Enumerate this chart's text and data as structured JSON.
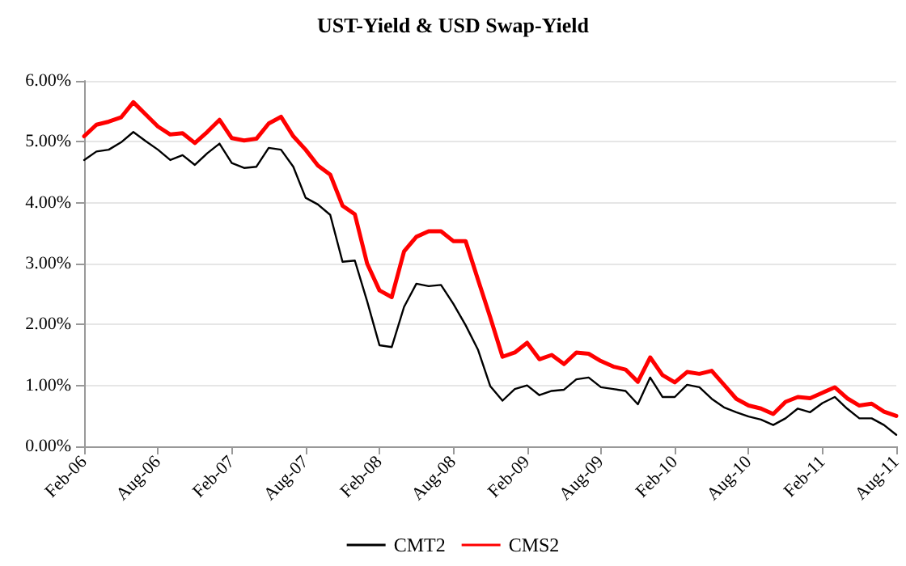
{
  "chart_data": {
    "type": "line",
    "title": "UST-Yield & USD Swap-Yield",
    "categories": [
      "Feb-06",
      null,
      null,
      null,
      null,
      null,
      "Aug-06",
      null,
      null,
      null,
      null,
      null,
      "Feb-07",
      null,
      null,
      null,
      null,
      null,
      "Aug-07",
      null,
      null,
      null,
      null,
      null,
      "Feb-08",
      null,
      null,
      null,
      null,
      null,
      "Aug-08",
      null,
      null,
      null,
      null,
      null,
      "Feb-09",
      null,
      null,
      null,
      null,
      null,
      "Aug-09",
      null,
      null,
      null,
      null,
      null,
      "Feb-10",
      null,
      null,
      null,
      null,
      null,
      "Aug-10",
      null,
      null,
      null,
      null,
      null,
      "Feb-11",
      null,
      null,
      null,
      null,
      null,
      "Aug-11"
    ],
    "series": [
      {
        "name": "CMT2",
        "color": "#000000",
        "values": [
          4.7,
          4.84,
          4.87,
          4.99,
          5.16,
          5.01,
          4.87,
          4.7,
          4.78,
          4.62,
          4.81,
          4.97,
          4.65,
          4.57,
          4.59,
          4.9,
          4.87,
          4.59,
          4.08,
          3.97,
          3.8,
          3.03,
          3.05,
          2.38,
          1.66,
          1.63,
          2.29,
          2.67,
          2.63,
          2.65,
          2.34,
          1.99,
          1.59,
          0.99,
          0.75,
          0.94,
          1.0,
          0.84,
          0.91,
          0.93,
          1.1,
          1.13,
          0.97,
          0.94,
          0.91,
          0.69,
          1.13,
          0.81,
          0.81,
          1.01,
          0.97,
          0.78,
          0.64,
          0.56,
          0.49,
          0.44,
          0.35,
          0.46,
          0.62,
          0.56,
          0.71,
          0.81,
          0.62,
          0.46,
          0.46,
          0.35,
          0.19
        ]
      },
      {
        "name": "CMS2",
        "color": "#ff0000",
        "values": [
          5.09,
          5.28,
          5.33,
          5.4,
          5.65,
          5.45,
          5.25,
          5.12,
          5.14,
          4.98,
          5.16,
          5.36,
          5.06,
          5.02,
          5.05,
          5.3,
          5.41,
          5.09,
          4.87,
          4.61,
          4.46,
          3.95,
          3.81,
          3.0,
          2.56,
          2.45,
          3.2,
          3.44,
          3.53,
          3.53,
          3.37,
          3.37,
          2.74,
          2.12,
          1.47,
          1.54,
          1.7,
          1.43,
          1.5,
          1.35,
          1.54,
          1.52,
          1.4,
          1.31,
          1.26,
          1.06,
          1.46,
          1.17,
          1.05,
          1.22,
          1.19,
          1.24,
          1.01,
          0.78,
          0.67,
          0.62,
          0.53,
          0.73,
          0.81,
          0.79,
          0.88,
          0.97,
          0.79,
          0.67,
          0.7,
          0.57,
          0.5
        ]
      }
    ],
    "ylim": [
      0,
      6
    ],
    "yticks": [
      {
        "value": 0,
        "label": "0.00%"
      },
      {
        "value": 1,
        "label": "1.00%"
      },
      {
        "value": 2,
        "label": "2.00%"
      },
      {
        "value": 3,
        "label": "3.00%"
      },
      {
        "value": 4,
        "label": "4.00%"
      },
      {
        "value": 5,
        "label": "5.00%"
      },
      {
        "value": 6,
        "label": "6.00%"
      }
    ],
    "grid": "y",
    "legend": "bottom",
    "marker": "none",
    "line_style": "solid"
  }
}
